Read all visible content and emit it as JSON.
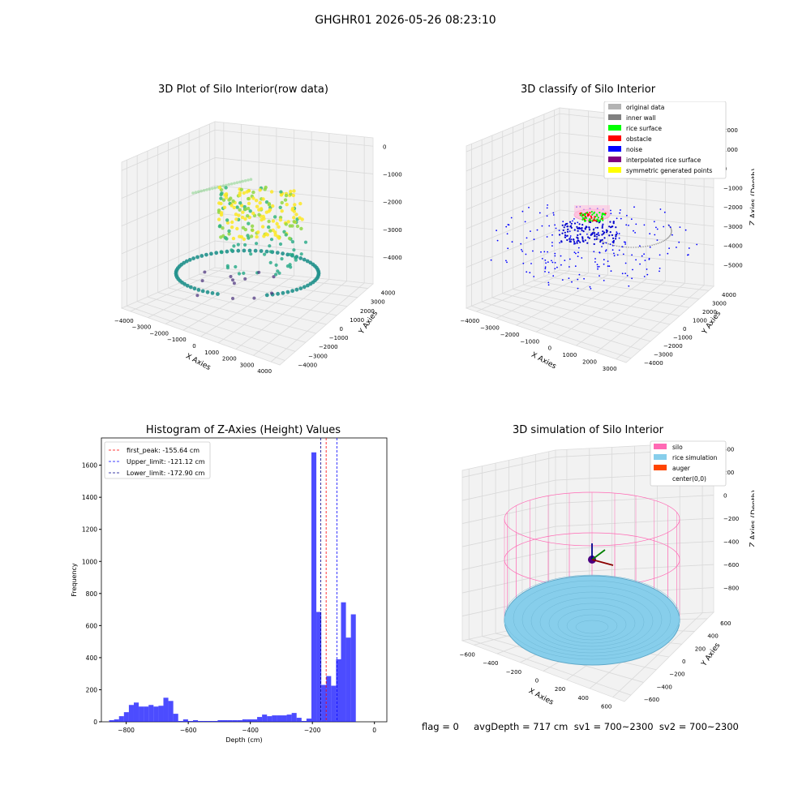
{
  "figure": {
    "title": "GHGHR01 2026-05-26 08:23:10",
    "footer": "flag = 0     avgDepth = 717 cm  sv1 = 700~2300  sv2 = 700~2300"
  },
  "panels": {
    "raw": {
      "title": "3D Plot of Silo Interior(row data)",
      "xlabel": "X Axies",
      "ylabel": "Y Axies",
      "zlabel": "Z Axies (Depth)",
      "xticks": [
        "−4000",
        "−3000",
        "−2000",
        "−1000",
        "0",
        "1000",
        "2000",
        "3000",
        "4000"
      ],
      "yticks": [
        "−4000",
        "−3000",
        "−2000",
        "−1000",
        "0",
        "1000",
        "2000",
        "3000",
        "4000"
      ],
      "zticks": [
        "0",
        "−1000",
        "−2000",
        "−3000",
        "−4000"
      ]
    },
    "classify": {
      "title": "3D classify of Silo Interior",
      "xlabel": "X Axies",
      "ylabel": "Y Axies",
      "zlabel": "Z Axies (Depth)",
      "xticks": [
        "−4000",
        "−3000",
        "−2000",
        "−1000",
        "0",
        "1000",
        "2000",
        "3000"
      ],
      "yticks": [
        "−4000",
        "−3000",
        "−2000",
        "−1000",
        "0",
        "1000",
        "2000",
        "3000",
        "4000"
      ],
      "zticks": [
        "2000",
        "1000",
        "0",
        "−1000",
        "−2000",
        "−3000",
        "−4000",
        "−5000"
      ],
      "legend": [
        {
          "label": "original data",
          "color": "#b3b3b3"
        },
        {
          "label": "inner wall",
          "color": "#808080"
        },
        {
          "label": "rice surface",
          "color": "#00ff00"
        },
        {
          "label": "obstacle",
          "color": "#ff0000"
        },
        {
          "label": "noise",
          "color": "#0000ff"
        },
        {
          "label": "interpolated rice surface",
          "color": "#800080"
        },
        {
          "label": "symmetric generated points",
          "color": "#ffff00"
        }
      ]
    },
    "simulation": {
      "title": "3D simulation of Silo Interior",
      "xlabel": "X Axies",
      "ylabel": "Y Axies",
      "zlabel": "Z Axies (Depth)",
      "xticks": [
        "−600",
        "−400",
        "−200",
        "0",
        "200",
        "400",
        "600"
      ],
      "yticks": [
        "−600",
        "−400",
        "−200",
        "0",
        "200",
        "400",
        "600"
      ],
      "zticks": [
        "400",
        "200",
        "0",
        "−200",
        "−400",
        "−600",
        "−800"
      ],
      "legend": [
        {
          "label": "silo",
          "color": "#ff69b4"
        },
        {
          "label": "rice simulation",
          "color": "#87ceeb"
        },
        {
          "label": "auger",
          "color": "#ff4500"
        },
        {
          "label": "center(0,0)",
          "color": ""
        }
      ]
    }
  },
  "chart_data": [
    {
      "type": "bar",
      "title": "Histogram of Z-Axies (Height) Values",
      "xlabel": "Depth (cm)",
      "ylabel": "Frequency",
      "xlim": [
        -880,
        40
      ],
      "ylim": [
        0,
        1770
      ],
      "xticks": [
        -800,
        -600,
        -400,
        -200,
        0
      ],
      "yticks": [
        0,
        200,
        400,
        600,
        800,
        1000,
        1200,
        1400,
        1600
      ],
      "bin_width": 15.9,
      "bin_start": -855,
      "values": [
        10,
        15,
        35,
        60,
        105,
        120,
        95,
        95,
        105,
        95,
        100,
        150,
        130,
        50,
        5,
        15,
        5,
        10,
        5,
        5,
        5,
        5,
        10,
        10,
        10,
        10,
        10,
        15,
        15,
        15,
        30,
        45,
        35,
        40,
        40,
        40,
        45,
        55,
        25,
        5,
        20,
        1680,
        685,
        230,
        285,
        225,
        390,
        745,
        525,
        670
      ],
      "color": "#0000ff",
      "lines": [
        {
          "label": "first_peak: -155.64 cm",
          "x": -155.64,
          "color": "#ff0000"
        },
        {
          "label": "Upper_limit: -121.12 cm",
          "x": -121.12,
          "color": "#0000ff"
        },
        {
          "label": "Lower_limit: -172.90 cm",
          "x": -172.9,
          "color": "#00008b"
        }
      ]
    }
  ]
}
